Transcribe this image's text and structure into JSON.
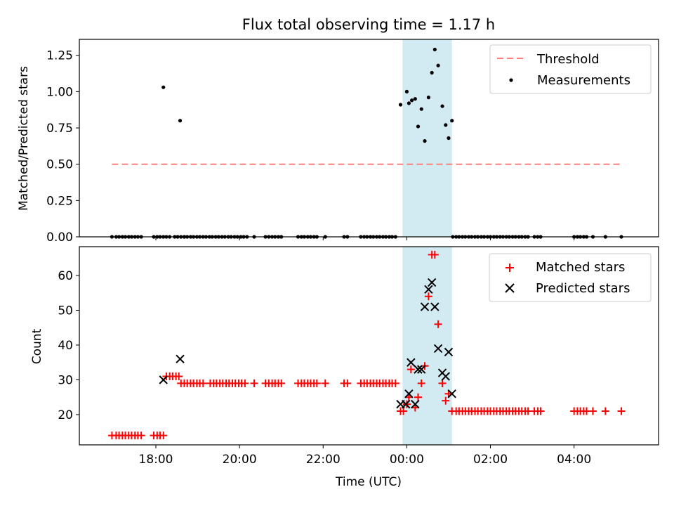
{
  "figure": {
    "title": "Flux total observing time = 1.17 h"
  },
  "colors": {
    "threshold": "#ff7f7f",
    "measurements": "#000000",
    "matched": "#ff0000",
    "predicted": "#000000",
    "highlight": "#add8e6"
  },
  "chart_data": [
    {
      "type": "scatter",
      "panel": "top",
      "title": "Flux total observing time = 1.17 h",
      "xlabel": "",
      "ylabel": "Matched/Predicted stars",
      "xlim": [
        16.17,
        30.02
      ],
      "ylim": [
        0,
        1.36
      ],
      "yticks": [
        0.0,
        0.25,
        0.5,
        0.75,
        1.0,
        1.25
      ],
      "ytick_labels": [
        "0.00",
        "0.25",
        "0.50",
        "0.75",
        "1.00",
        "1.25"
      ],
      "grid": false,
      "legend_position": "top-right",
      "highlight_span": [
        23.9,
        25.08
      ],
      "threshold": {
        "name": "Threshold",
        "y": 0.5,
        "x_range": [
          16.95,
          29.13
        ]
      },
      "series": [
        {
          "name": "Measurements",
          "marker": "dot",
          "points": [
            [
              16.95,
              0
            ],
            [
              17.05,
              0
            ],
            [
              17.12,
              0
            ],
            [
              17.2,
              0
            ],
            [
              17.27,
              0
            ],
            [
              17.35,
              0
            ],
            [
              17.42,
              0
            ],
            [
              17.5,
              0
            ],
            [
              17.57,
              0
            ],
            [
              17.65,
              0
            ],
            [
              17.95,
              0
            ],
            [
              18.03,
              0
            ],
            [
              18.1,
              0
            ],
            [
              18.18,
              0
            ],
            [
              18.25,
              0
            ],
            [
              18.33,
              0
            ],
            [
              18.45,
              0
            ],
            [
              18.52,
              0
            ],
            [
              18.6,
              0
            ],
            [
              18.68,
              0
            ],
            [
              18.68,
              0
            ],
            [
              18.75,
              0
            ],
            [
              18.83,
              0
            ],
            [
              18.9,
              0
            ],
            [
              18.98,
              0
            ],
            [
              19.05,
              0
            ],
            [
              19.13,
              0
            ],
            [
              19.2,
              0
            ],
            [
              19.28,
              0
            ],
            [
              19.35,
              0
            ],
            [
              19.43,
              0
            ],
            [
              19.5,
              0
            ],
            [
              19.58,
              0
            ],
            [
              19.65,
              0
            ],
            [
              19.73,
              0
            ],
            [
              19.8,
              0
            ],
            [
              19.88,
              0
            ],
            [
              19.95,
              0
            ],
            [
              20.03,
              0
            ],
            [
              20.1,
              0
            ],
            [
              20.18,
              0
            ],
            [
              20.35,
              0
            ],
            [
              20.62,
              0
            ],
            [
              20.7,
              0
            ],
            [
              20.78,
              0
            ],
            [
              20.85,
              0
            ],
            [
              20.93,
              0
            ],
            [
              21.0,
              0
            ],
            [
              21.4,
              0
            ],
            [
              21.48,
              0
            ],
            [
              21.55,
              0
            ],
            [
              21.63,
              0
            ],
            [
              21.7,
              0
            ],
            [
              21.78,
              0
            ],
            [
              21.85,
              0
            ],
            [
              22.05,
              0
            ],
            [
              22.5,
              0
            ],
            [
              22.58,
              0
            ],
            [
              22.9,
              0
            ],
            [
              22.98,
              0
            ],
            [
              23.05,
              0
            ],
            [
              23.13,
              0
            ],
            [
              23.2,
              0
            ],
            [
              23.28,
              0
            ],
            [
              23.35,
              0
            ],
            [
              23.43,
              0
            ],
            [
              23.5,
              0
            ],
            [
              23.58,
              0
            ],
            [
              23.65,
              0
            ],
            [
              23.73,
              0
            ],
            [
              25.1,
              0
            ],
            [
              25.18,
              0
            ],
            [
              25.25,
              0
            ],
            [
              25.33,
              0
            ],
            [
              25.4,
              0
            ],
            [
              25.48,
              0
            ],
            [
              25.55,
              0
            ],
            [
              25.63,
              0
            ],
            [
              25.7,
              0
            ],
            [
              25.78,
              0
            ],
            [
              25.85,
              0
            ],
            [
              25.93,
              0
            ],
            [
              26.0,
              0
            ],
            [
              26.08,
              0
            ],
            [
              26.15,
              0
            ],
            [
              26.23,
              0
            ],
            [
              26.3,
              0
            ],
            [
              26.38,
              0
            ],
            [
              26.45,
              0
            ],
            [
              26.53,
              0
            ],
            [
              26.6,
              0
            ],
            [
              26.68,
              0
            ],
            [
              26.75,
              0
            ],
            [
              26.83,
              0
            ],
            [
              26.9,
              0
            ],
            [
              27.05,
              0
            ],
            [
              27.13,
              0
            ],
            [
              27.2,
              0
            ],
            [
              28.0,
              0
            ],
            [
              28.08,
              0
            ],
            [
              28.15,
              0
            ],
            [
              28.23,
              0
            ],
            [
              28.3,
              0
            ],
            [
              28.45,
              0
            ],
            [
              28.75,
              0
            ],
            [
              29.13,
              0
            ],
            [
              18.18,
              1.03
            ],
            [
              18.58,
              0.8
            ],
            [
              23.85,
              0.91
            ],
            [
              24.0,
              1.0
            ],
            [
              24.05,
              0.92
            ],
            [
              24.12,
              0.94
            ],
            [
              24.2,
              0.95
            ],
            [
              24.27,
              0.76
            ],
            [
              24.35,
              0.88
            ],
            [
              24.43,
              0.66
            ],
            [
              24.52,
              0.96
            ],
            [
              24.6,
              1.13
            ],
            [
              24.67,
              1.29
            ],
            [
              24.75,
              1.18
            ],
            [
              24.85,
              0.9
            ],
            [
              24.93,
              0.77
            ],
            [
              25.0,
              0.68
            ],
            [
              25.08,
              0.8
            ]
          ]
        }
      ]
    },
    {
      "type": "scatter",
      "panel": "bottom",
      "xlabel": "Time (UTC)",
      "ylabel": "Count",
      "xlim": [
        16.17,
        30.02
      ],
      "ylim": [
        11.3,
        68.3
      ],
      "xticks": [
        18,
        20,
        22,
        24,
        26,
        28
      ],
      "xtick_labels": [
        "18:00",
        "20:00",
        "22:00",
        "00:00",
        "02:00",
        "04:00"
      ],
      "yticks": [
        20,
        30,
        40,
        50,
        60
      ],
      "ytick_labels": [
        "20",
        "30",
        "40",
        "50",
        "60"
      ],
      "grid": false,
      "legend_position": "top-right",
      "highlight_span": [
        23.9,
        25.08
      ],
      "series": [
        {
          "name": "Matched stars",
          "marker": "plus",
          "points": [
            [
              16.95,
              14
            ],
            [
              17.05,
              14
            ],
            [
              17.12,
              14
            ],
            [
              17.2,
              14
            ],
            [
              17.27,
              14
            ],
            [
              17.35,
              14
            ],
            [
              17.42,
              14
            ],
            [
              17.5,
              14
            ],
            [
              17.57,
              14
            ],
            [
              17.65,
              14
            ],
            [
              17.95,
              14
            ],
            [
              18.03,
              14
            ],
            [
              18.1,
              14
            ],
            [
              18.18,
              14
            ],
            [
              18.25,
              31
            ],
            [
              18.33,
              31
            ],
            [
              18.4,
              31
            ],
            [
              18.48,
              31
            ],
            [
              18.55,
              31
            ],
            [
              18.6,
              29
            ],
            [
              18.68,
              29
            ],
            [
              18.75,
              29
            ],
            [
              18.83,
              29
            ],
            [
              18.9,
              29
            ],
            [
              18.98,
              29
            ],
            [
              19.05,
              29
            ],
            [
              19.13,
              29
            ],
            [
              19.3,
              29
            ],
            [
              19.38,
              29
            ],
            [
              19.45,
              29
            ],
            [
              19.53,
              29
            ],
            [
              19.6,
              29
            ],
            [
              19.68,
              29
            ],
            [
              19.75,
              29
            ],
            [
              19.83,
              29
            ],
            [
              19.9,
              29
            ],
            [
              19.98,
              29
            ],
            [
              20.05,
              29
            ],
            [
              20.13,
              29
            ],
            [
              20.35,
              29
            ],
            [
              20.62,
              29
            ],
            [
              20.7,
              29
            ],
            [
              20.78,
              29
            ],
            [
              20.85,
              29
            ],
            [
              20.93,
              29
            ],
            [
              21.0,
              29
            ],
            [
              21.4,
              29
            ],
            [
              21.48,
              29
            ],
            [
              21.55,
              29
            ],
            [
              21.63,
              29
            ],
            [
              21.7,
              29
            ],
            [
              21.78,
              29
            ],
            [
              21.85,
              29
            ],
            [
              22.05,
              29
            ],
            [
              22.5,
              29
            ],
            [
              22.58,
              29
            ],
            [
              22.9,
              29
            ],
            [
              22.98,
              29
            ],
            [
              23.05,
              29
            ],
            [
              23.13,
              29
            ],
            [
              23.2,
              29
            ],
            [
              23.28,
              29
            ],
            [
              23.35,
              29
            ],
            [
              23.43,
              29
            ],
            [
              23.5,
              29
            ],
            [
              23.58,
              29
            ],
            [
              23.65,
              29
            ],
            [
              23.73,
              29
            ],
            [
              23.85,
              21
            ],
            [
              23.92,
              21
            ],
            [
              24.0,
              23
            ],
            [
              24.05,
              25
            ],
            [
              24.1,
              33
            ],
            [
              24.2,
              22
            ],
            [
              24.27,
              25
            ],
            [
              24.35,
              29
            ],
            [
              24.43,
              34
            ],
            [
              24.52,
              54
            ],
            [
              24.6,
              66
            ],
            [
              24.67,
              66
            ],
            [
              24.75,
              46
            ],
            [
              24.85,
              29
            ],
            [
              24.93,
              24
            ],
            [
              25.0,
              26
            ],
            [
              25.08,
              21
            ],
            [
              25.18,
              21
            ],
            [
              25.25,
              21
            ],
            [
              25.33,
              21
            ],
            [
              25.4,
              21
            ],
            [
              25.48,
              21
            ],
            [
              25.55,
              21
            ],
            [
              25.63,
              21
            ],
            [
              25.7,
              21
            ],
            [
              25.78,
              21
            ],
            [
              25.85,
              21
            ],
            [
              25.93,
              21
            ],
            [
              26.0,
              21
            ],
            [
              26.08,
              21
            ],
            [
              26.15,
              21
            ],
            [
              26.23,
              21
            ],
            [
              26.3,
              21
            ],
            [
              26.38,
              21
            ],
            [
              26.45,
              21
            ],
            [
              26.53,
              21
            ],
            [
              26.6,
              21
            ],
            [
              26.68,
              21
            ],
            [
              26.75,
              21
            ],
            [
              26.83,
              21
            ],
            [
              26.9,
              21
            ],
            [
              27.05,
              21
            ],
            [
              27.13,
              21
            ],
            [
              27.2,
              21
            ],
            [
              28.0,
              21
            ],
            [
              28.08,
              21
            ],
            [
              28.15,
              21
            ],
            [
              28.23,
              21
            ],
            [
              28.3,
              21
            ],
            [
              28.45,
              21
            ],
            [
              28.75,
              21
            ],
            [
              29.13,
              21
            ]
          ]
        },
        {
          "name": "Predicted stars",
          "marker": "x",
          "points": [
            [
              18.18,
              30
            ],
            [
              18.58,
              36
            ],
            [
              23.85,
              23
            ],
            [
              23.98,
              23
            ],
            [
              24.05,
              26
            ],
            [
              24.1,
              35
            ],
            [
              24.2,
              23
            ],
            [
              24.27,
              33
            ],
            [
              24.35,
              33
            ],
            [
              24.43,
              51
            ],
            [
              24.52,
              56
            ],
            [
              24.6,
              58
            ],
            [
              24.67,
              51
            ],
            [
              24.75,
              39
            ],
            [
              24.85,
              32
            ],
            [
              24.93,
              31
            ],
            [
              25.0,
              38
            ],
            [
              25.08,
              26
            ]
          ]
        }
      ]
    }
  ]
}
